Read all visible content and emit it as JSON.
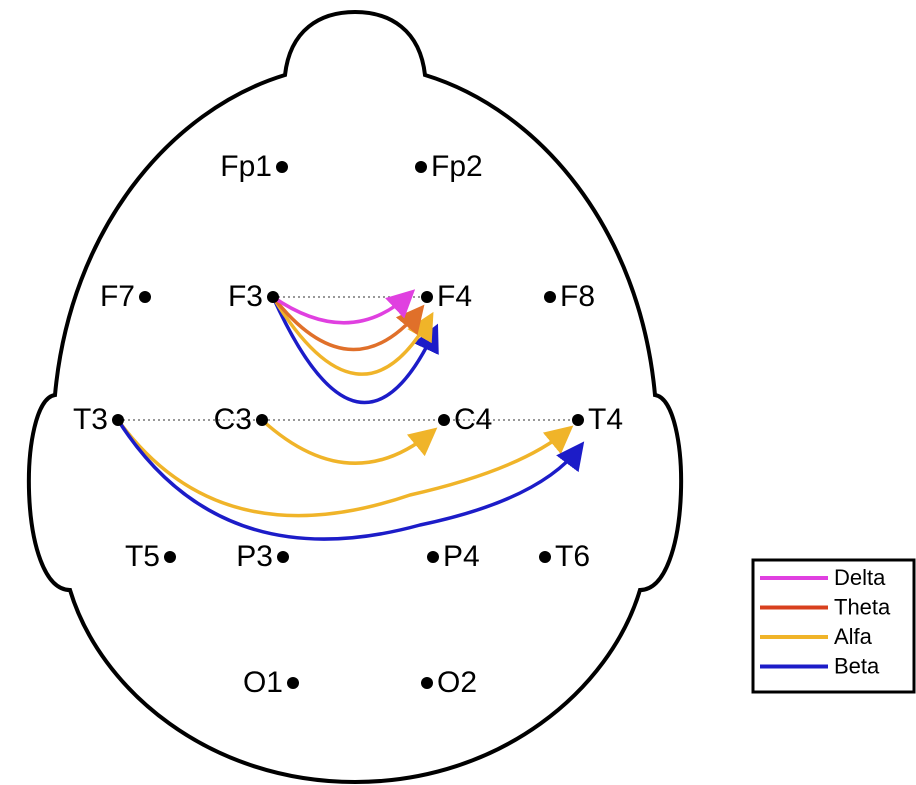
{
  "electrodes": [
    {
      "label": "Fp1"
    },
    {
      "label": "Fp2"
    },
    {
      "label": "F7"
    },
    {
      "label": "F3"
    },
    {
      "label": "F4"
    },
    {
      "label": "F8"
    },
    {
      "label": "T3"
    },
    {
      "label": "C3"
    },
    {
      "label": "C4"
    },
    {
      "label": "T4"
    },
    {
      "label": "T5"
    },
    {
      "label": "P3"
    },
    {
      "label": "P4"
    },
    {
      "label": "T6"
    },
    {
      "label": "O1"
    },
    {
      "label": "O2"
    }
  ],
  "legend": [
    {
      "label": "Delta"
    },
    {
      "label": "Theta"
    },
    {
      "label": "Alfa"
    },
    {
      "label": "Beta"
    }
  ]
}
